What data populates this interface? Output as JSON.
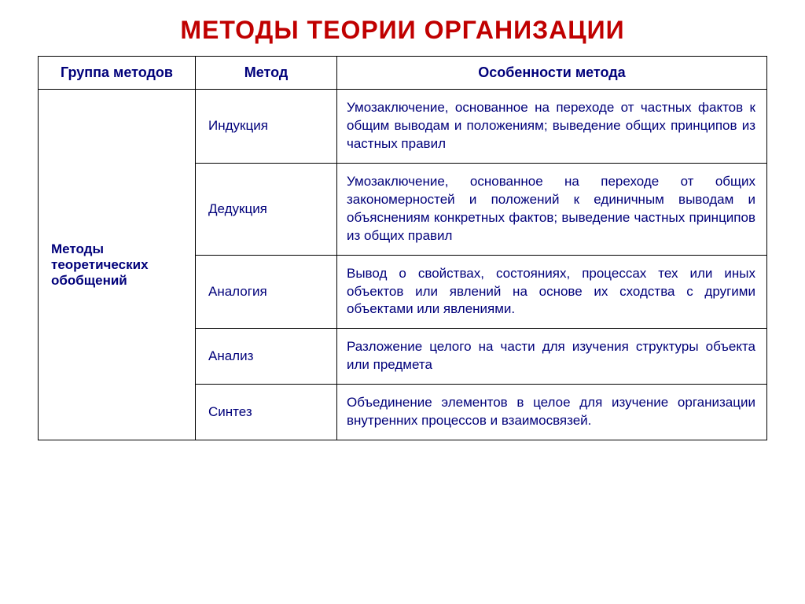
{
  "title": "МЕТОДЫ ТЕОРИИ ОРГАНИЗАЦИИ",
  "title_color": "#c00000",
  "text_color": "#00007a",
  "headers": {
    "group": "Группа методов",
    "method": "Метод",
    "features": "Особенности метода"
  },
  "group_label": "Методы теоретических обобщений",
  "rows": [
    {
      "method": "Индукция",
      "features": "Умозаключение, основанное на переходе от частных фактов к общим выводам и положениям; выведение общих принципов из частных правил"
    },
    {
      "method": "Дедукция",
      "features": "Умозаключение, основанное на переходе от общих закономерностей и положений к единичным выводам и объяснениям конкретных фактов; выведение частных принципов из общих правил"
    },
    {
      "method": "Аналогия",
      "features": "Вывод о свойствах, состояниях, процессах тех или иных объектов или явлений на основе их сходства с другими объектами или явлениями."
    },
    {
      "method": "Анализ",
      "features": "Разложение целого на части для изучения структуры объекта или предмета"
    },
    {
      "method": "Синтез",
      "features": "Объединение элементов в целое для изучение организации внутренних процессов и взаимосвязей."
    }
  ]
}
